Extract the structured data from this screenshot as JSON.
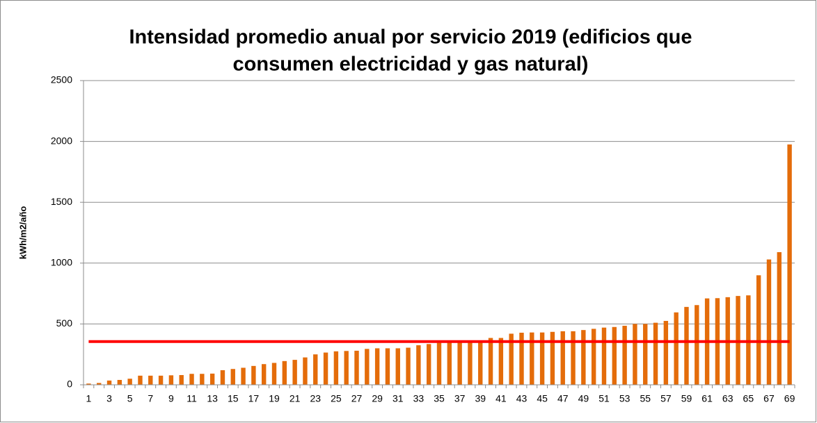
{
  "chart_data": {
    "type": "bar",
    "title": [
      "Intensidad promedio anual por servicio 2019 (edificios que",
      "consumen electricidad y gas natural)"
    ],
    "ylabel": "kWh/m2/año",
    "categories": [
      "1",
      null,
      "3",
      null,
      "5",
      null,
      "7",
      null,
      "9",
      null,
      "11",
      null,
      "13",
      null,
      "15",
      null,
      "17",
      null,
      "19",
      null,
      "21",
      null,
      "23",
      null,
      "25",
      null,
      "27",
      null,
      "29",
      null,
      "31",
      null,
      "33",
      null,
      "35",
      null,
      "37",
      null,
      "39",
      null,
      "41",
      null,
      "43",
      null,
      "45",
      null,
      "47",
      null,
      "49",
      null,
      "51",
      null,
      "53",
      null,
      "55",
      null,
      "57",
      null,
      "59",
      null,
      "61",
      null,
      "63",
      null,
      "65",
      null,
      "67",
      null,
      "69"
    ],
    "values": [
      10,
      15,
      35,
      40,
      50,
      75,
      75,
      75,
      78,
      80,
      90,
      90,
      92,
      120,
      130,
      140,
      155,
      170,
      180,
      195,
      205,
      225,
      250,
      265,
      275,
      278,
      280,
      295,
      300,
      300,
      300,
      305,
      325,
      335,
      345,
      348,
      350,
      355,
      365,
      385,
      385,
      420,
      428,
      430,
      430,
      435,
      440,
      440,
      450,
      460,
      470,
      475,
      485,
      500,
      500,
      510,
      525,
      595,
      640,
      655,
      710,
      712,
      720,
      730,
      735,
      900,
      1030,
      1090,
      1975
    ],
    "color": "#e46c0a",
    "reference_line": {
      "value": 355,
      "color": "#ff0000"
    },
    "ylim": [
      0,
      2500
    ],
    "yticks": [
      0,
      500,
      1000,
      1500,
      2000,
      2500
    ],
    "grid": true
  }
}
